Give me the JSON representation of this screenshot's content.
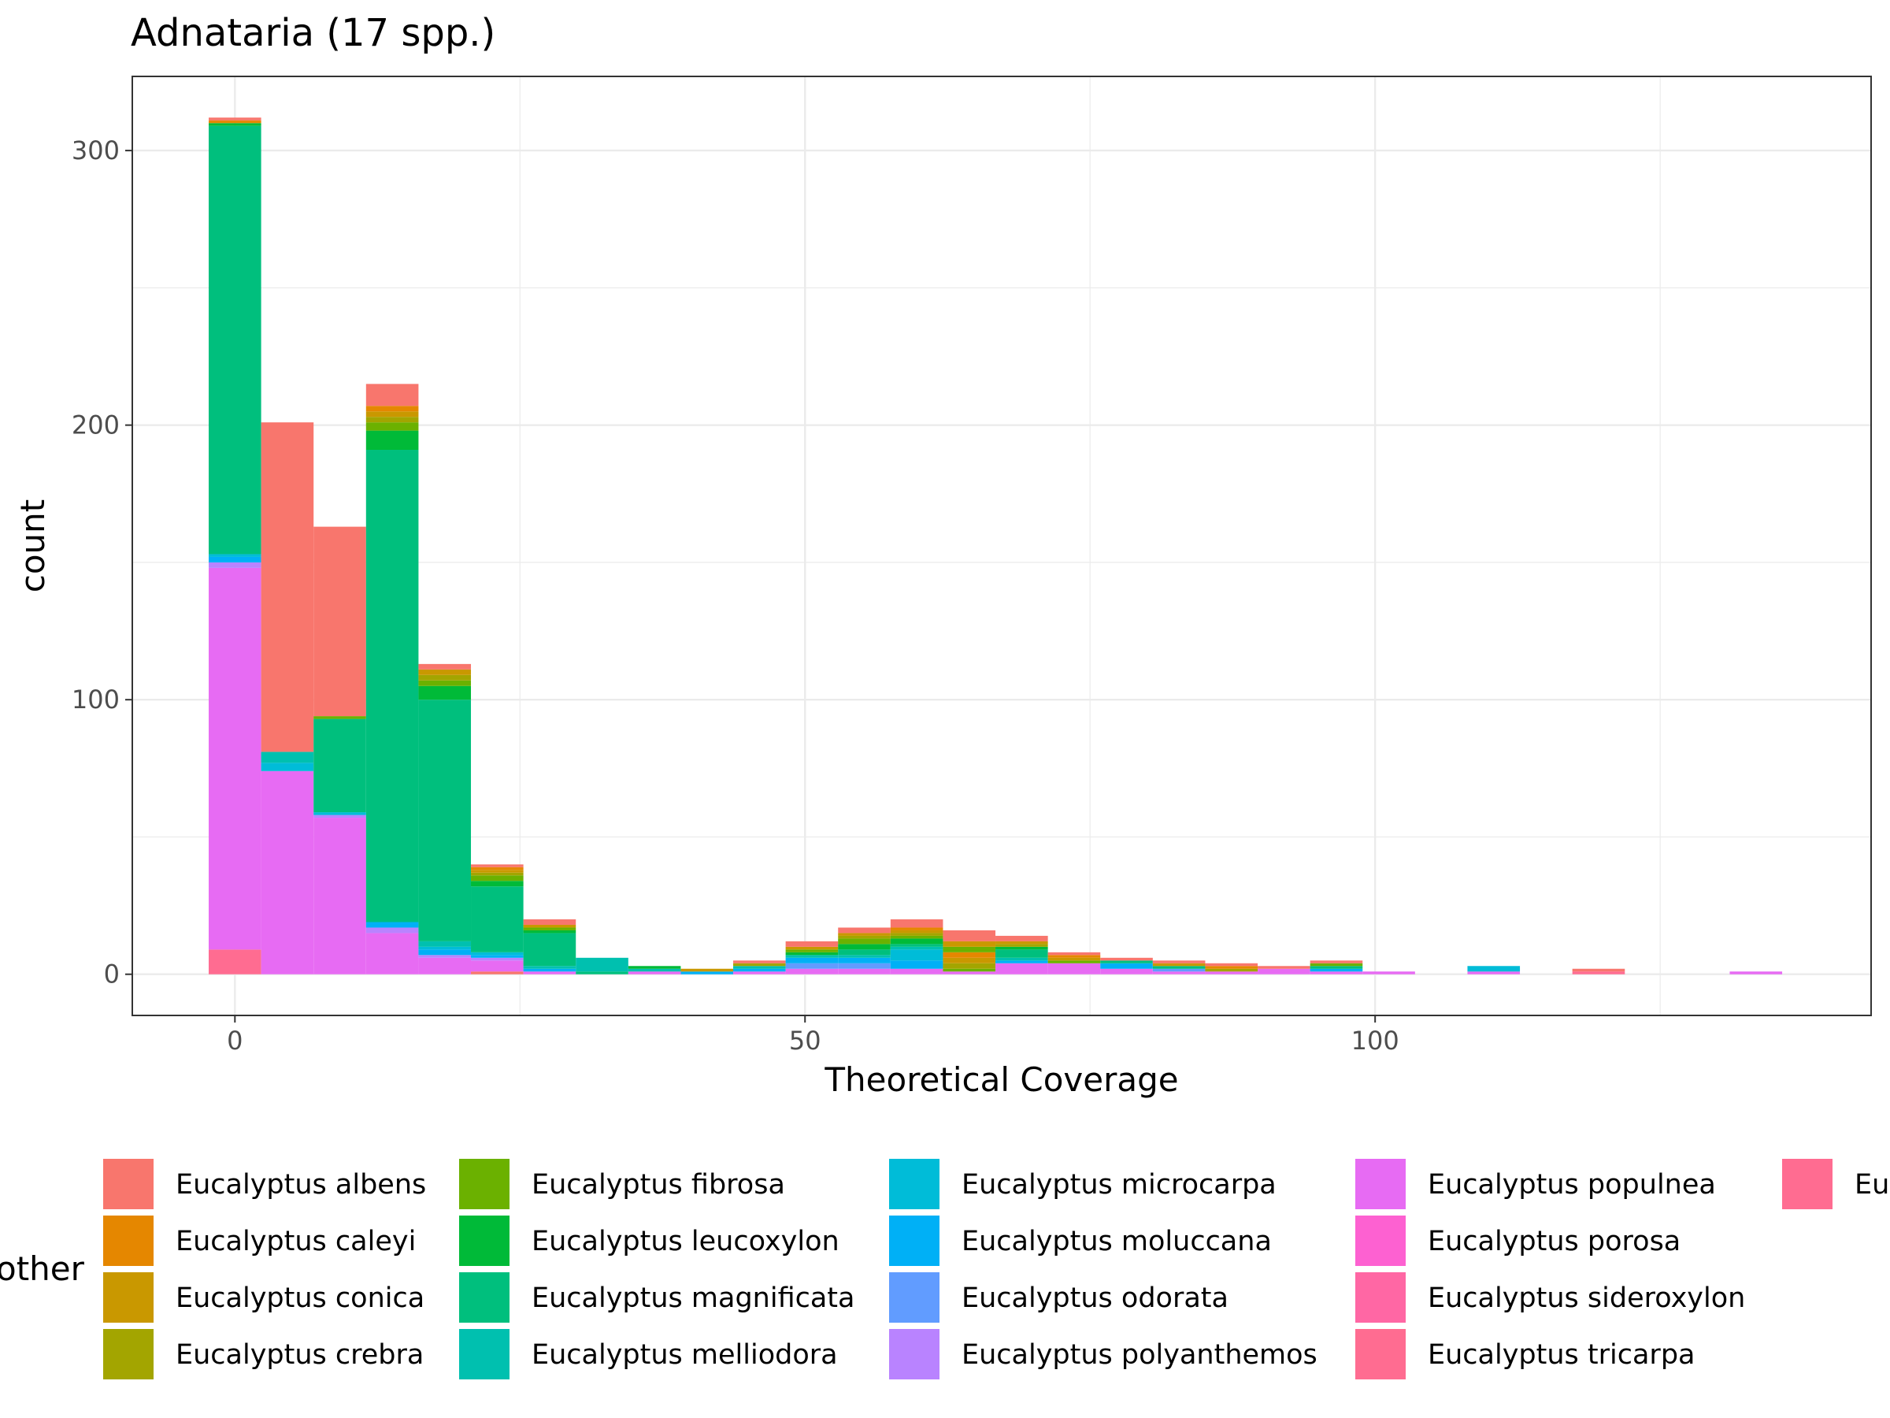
{
  "chart_data": {
    "type": "bar",
    "stacked": true,
    "title": "Adnataria (17 spp.)",
    "xlabel": "Theoretical Coverage",
    "ylabel": "count",
    "xlim": [
      -9,
      143.5
    ],
    "ylim": [
      -15,
      327
    ],
    "x_ticks": [
      0,
      50,
      100
    ],
    "y_ticks": [
      0,
      100,
      200,
      300
    ],
    "grid": true,
    "bin_width": 4.6,
    "legend_title": "other",
    "legend_position": "bottom",
    "series": [
      {
        "name": "Eucalyptus albens",
        "color": "#F8766D"
      },
      {
        "name": "Eucalyptus caleyi",
        "color": "#E58700"
      },
      {
        "name": "Eucalyptus conica",
        "color": "#C99800"
      },
      {
        "name": "Eucalyptus crebra",
        "color": "#A3A500"
      },
      {
        "name": "Eucalyptus fibrosa",
        "color": "#6BB100"
      },
      {
        "name": "Eucalyptus leucoxylon",
        "color": "#00BA38"
      },
      {
        "name": "Eucalyptus magnificata",
        "color": "#00BF7D"
      },
      {
        "name": "Eucalyptus melliodora",
        "color": "#00C0AF"
      },
      {
        "name": "Eucalyptus microcarpa",
        "color": "#00BCD8"
      },
      {
        "name": "Eucalyptus moluccana",
        "color": "#00B0F6"
      },
      {
        "name": "Eucalyptus odorata",
        "color": "#619CFF"
      },
      {
        "name": "Eucalyptus polyanthemos",
        "color": "#B983FF"
      },
      {
        "name": "Eucalyptus populnea",
        "color": "#E76BF3"
      },
      {
        "name": "Eucalyptus porosa",
        "color": "#FD61D1"
      },
      {
        "name": "Eucalyptus sideroxylon",
        "color": "#FF67A4"
      },
      {
        "name": "Eucalyptus tricarpa",
        "color": "#FF6C91"
      },
      {
        "name": "Eucalyptus ...",
        "color": "#FF6C91"
      }
    ],
    "bins": [
      {
        "x": 0.0,
        "stack": [
          {
            "s": 15,
            "v": 9
          },
          {
            "s": 12,
            "v": 139
          },
          {
            "s": 11,
            "v": 2
          },
          {
            "s": 9,
            "v": 2
          },
          {
            "s": 8,
            "v": 1
          },
          {
            "s": 6,
            "v": 156
          },
          {
            "s": 5,
            "v": 1
          },
          {
            "s": 1,
            "v": 1
          },
          {
            "s": 0,
            "v": 1
          }
        ]
      },
      {
        "x": 4.6,
        "stack": [
          {
            "s": 12,
            "v": 74
          },
          {
            "s": 8,
            "v": 3
          },
          {
            "s": 7,
            "v": 4
          },
          {
            "s": 0,
            "v": 120
          }
        ]
      },
      {
        "x": 9.2,
        "stack": [
          {
            "s": 12,
            "v": 57
          },
          {
            "s": 11,
            "v": 1
          },
          {
            "s": 8,
            "v": 1
          },
          {
            "s": 6,
            "v": 34
          },
          {
            "s": 4,
            "v": 1
          },
          {
            "s": 0,
            "v": 69
          }
        ]
      },
      {
        "x": 13.8,
        "stack": [
          {
            "s": 12,
            "v": 15
          },
          {
            "s": 11,
            "v": 2
          },
          {
            "s": 9,
            "v": 2
          },
          {
            "s": 6,
            "v": 172
          },
          {
            "s": 5,
            "v": 7
          },
          {
            "s": 4,
            "v": 3
          },
          {
            "s": 3,
            "v": 2
          },
          {
            "s": 2,
            "v": 2
          },
          {
            "s": 1,
            "v": 2
          },
          {
            "s": 0,
            "v": 8
          }
        ]
      },
      {
        "x": 18.4,
        "stack": [
          {
            "s": 12,
            "v": 6
          },
          {
            "s": 11,
            "v": 1
          },
          {
            "s": 9,
            "v": 2
          },
          {
            "s": 8,
            "v": 1
          },
          {
            "s": 7,
            "v": 2
          },
          {
            "s": 6,
            "v": 88
          },
          {
            "s": 5,
            "v": 5
          },
          {
            "s": 4,
            "v": 2
          },
          {
            "s": 3,
            "v": 2
          },
          {
            "s": 2,
            "v": 2
          },
          {
            "s": 0,
            "v": 2
          }
        ]
      },
      {
        "x": 23.0,
        "stack": [
          {
            "s": 0,
            "v": 1
          },
          {
            "s": 12,
            "v": 4
          },
          {
            "s": 11,
            "v": 1
          },
          {
            "s": 9,
            "v": 1
          },
          {
            "s": 8,
            "v": 1
          },
          {
            "s": 6,
            "v": 24
          },
          {
            "s": 5,
            "v": 2
          },
          {
            "s": 4,
            "v": 2
          },
          {
            "s": 3,
            "v": 1
          },
          {
            "s": 2,
            "v": 1
          },
          {
            "s": 1,
            "v": 1
          },
          {
            "s": 0,
            "v": 1
          }
        ]
      },
      {
        "x": 27.6,
        "stack": [
          {
            "s": 12,
            "v": 1
          },
          {
            "s": 9,
            "v": 1
          },
          {
            "s": 7,
            "v": 1
          },
          {
            "s": 6,
            "v": 12
          },
          {
            "s": 5,
            "v": 1
          },
          {
            "s": 4,
            "v": 1
          },
          {
            "s": 2,
            "v": 1
          },
          {
            "s": 0,
            "v": 2
          }
        ]
      },
      {
        "x": 32.2,
        "stack": [
          {
            "s": 6,
            "v": 1
          },
          {
            "s": 7,
            "v": 5
          }
        ]
      },
      {
        "x": 36.8,
        "stack": [
          {
            "s": 12,
            "v": 1
          },
          {
            "s": 7,
            "v": 1
          },
          {
            "s": 5,
            "v": 1
          }
        ]
      },
      {
        "x": 41.4,
        "stack": [
          {
            "s": 9,
            "v": 1
          },
          {
            "s": 2,
            "v": 1
          }
        ]
      },
      {
        "x": 46.0,
        "stack": [
          {
            "s": 12,
            "v": 1
          },
          {
            "s": 9,
            "v": 1
          },
          {
            "s": 7,
            "v": 1
          },
          {
            "s": 3,
            "v": 1
          },
          {
            "s": 0,
            "v": 1
          }
        ]
      },
      {
        "x": 50.6,
        "stack": [
          {
            "s": 12,
            "v": 2
          },
          {
            "s": 10,
            "v": 2
          },
          {
            "s": 9,
            "v": 2
          },
          {
            "s": 7,
            "v": 1
          },
          {
            "s": 5,
            "v": 1
          },
          {
            "s": 4,
            "v": 1
          },
          {
            "s": 2,
            "v": 1
          },
          {
            "s": 0,
            "v": 2
          }
        ]
      },
      {
        "x": 55.2,
        "stack": [
          {
            "s": 12,
            "v": 2
          },
          {
            "s": 10,
            "v": 2
          },
          {
            "s": 9,
            "v": 2
          },
          {
            "s": 7,
            "v": 1
          },
          {
            "s": 6,
            "v": 2
          },
          {
            "s": 5,
            "v": 2
          },
          {
            "s": 4,
            "v": 2
          },
          {
            "s": 3,
            "v": 1
          },
          {
            "s": 2,
            "v": 1
          },
          {
            "s": 0,
            "v": 2
          }
        ]
      },
      {
        "x": 59.8,
        "stack": [
          {
            "s": 12,
            "v": 2
          },
          {
            "s": 9,
            "v": 3
          },
          {
            "s": 8,
            "v": 4
          },
          {
            "s": 7,
            "v": 1
          },
          {
            "s": 6,
            "v": 1
          },
          {
            "s": 5,
            "v": 2
          },
          {
            "s": 4,
            "v": 1
          },
          {
            "s": 3,
            "v": 1
          },
          {
            "s": 2,
            "v": 1
          },
          {
            "s": 1,
            "v": 1
          },
          {
            "s": 0,
            "v": 3
          }
        ]
      },
      {
        "x": 64.4,
        "stack": [
          {
            "s": 12,
            "v": 1
          },
          {
            "s": 4,
            "v": 1
          },
          {
            "s": 3,
            "v": 2
          },
          {
            "s": 2,
            "v": 2
          },
          {
            "s": 1,
            "v": 2
          },
          {
            "s": 4,
            "v": 2
          },
          {
            "s": 2,
            "v": 2
          },
          {
            "s": 0,
            "v": 4
          }
        ]
      },
      {
        "x": 69.0,
        "stack": [
          {
            "s": 12,
            "v": 4
          },
          {
            "s": 9,
            "v": 1
          },
          {
            "s": 7,
            "v": 1
          },
          {
            "s": 6,
            "v": 3
          },
          {
            "s": 5,
            "v": 1
          },
          {
            "s": 3,
            "v": 1
          },
          {
            "s": 2,
            "v": 1
          },
          {
            "s": 0,
            "v": 2
          }
        ]
      },
      {
        "x": 73.6,
        "stack": [
          {
            "s": 12,
            "v": 4
          },
          {
            "s": 4,
            "v": 1
          },
          {
            "s": 2,
            "v": 1
          },
          {
            "s": 1,
            "v": 1
          },
          {
            "s": 0,
            "v": 1
          }
        ]
      },
      {
        "x": 78.2,
        "stack": [
          {
            "s": 12,
            "v": 2
          },
          {
            "s": 9,
            "v": 2
          },
          {
            "s": 6,
            "v": 1
          },
          {
            "s": 0,
            "v": 1
          }
        ]
      },
      {
        "x": 82.8,
        "stack": [
          {
            "s": 12,
            "v": 1
          },
          {
            "s": 10,
            "v": 1
          },
          {
            "s": 6,
            "v": 1
          },
          {
            "s": 2,
            "v": 1
          },
          {
            "s": 0,
            "v": 1
          }
        ]
      },
      {
        "x": 87.4,
        "stack": [
          {
            "s": 12,
            "v": 1
          },
          {
            "s": 3,
            "v": 1
          },
          {
            "s": 1,
            "v": 1
          },
          {
            "s": 0,
            "v": 1
          }
        ]
      },
      {
        "x": 92.0,
        "stack": [
          {
            "s": 12,
            "v": 2
          },
          {
            "s": 0,
            "v": 1
          }
        ]
      },
      {
        "x": 96.6,
        "stack": [
          {
            "s": 12,
            "v": 1
          },
          {
            "s": 9,
            "v": 1
          },
          {
            "s": 6,
            "v": 1
          },
          {
            "s": 4,
            "v": 1
          },
          {
            "s": 0,
            "v": 1
          }
        ]
      },
      {
        "x": 101.2,
        "stack": [
          {
            "s": 12,
            "v": 1
          }
        ]
      },
      {
        "x": 110.4,
        "stack": [
          {
            "s": 12,
            "v": 1
          },
          {
            "s": 8,
            "v": 2
          }
        ]
      },
      {
        "x": 119.6,
        "stack": [
          {
            "s": 15,
            "v": 1
          },
          {
            "s": 0,
            "v": 1
          }
        ]
      },
      {
        "x": 133.4,
        "stack": [
          {
            "s": 12,
            "v": 1
          }
        ]
      }
    ]
  }
}
